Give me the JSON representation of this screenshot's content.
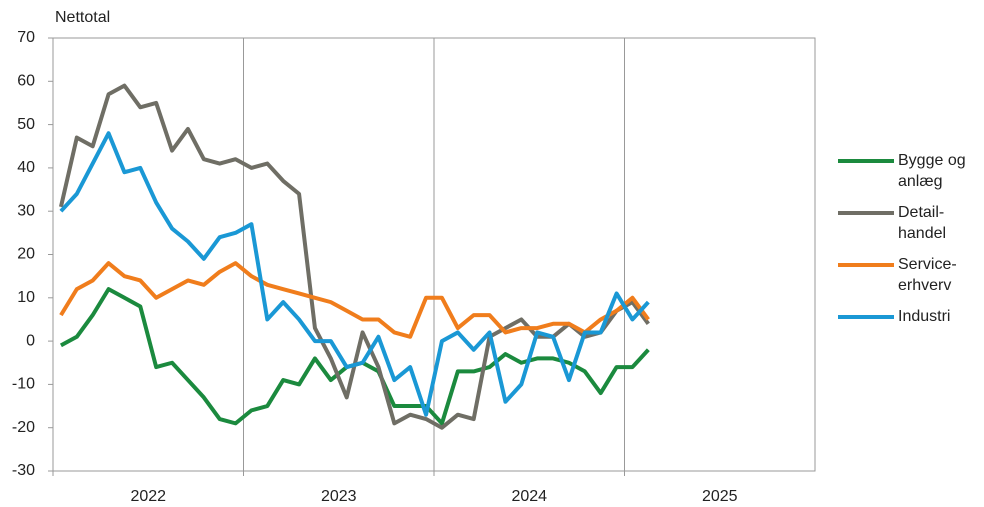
{
  "chart_data": {
    "type": "line",
    "y_axis_title": "Nettotal",
    "year_labels": [
      "2022",
      "2023",
      "2024",
      "2025"
    ],
    "categories": [
      null,
      null,
      null,
      null,
      null,
      null,
      null,
      null,
      null,
      null,
      null,
      null,
      null,
      null,
      null,
      null,
      null,
      null,
      null,
      null,
      null,
      null,
      null,
      null,
      null,
      null,
      null,
      null,
      null,
      null,
      null,
      null,
      null,
      null,
      null,
      null,
      null,
      null,
      null,
      null,
      null,
      null,
      null,
      null,
      null,
      null,
      null,
      null
    ],
    "series": [
      {
        "name": "Bygge og anlæg",
        "color": "#1b8a3e",
        "values": [
          -1,
          1,
          6,
          12,
          10,
          8,
          -6,
          -5,
          -9,
          -13,
          -18,
          -19,
          -16,
          -15,
          -9,
          -10,
          -4,
          -9,
          -6,
          -5,
          -7,
          -15,
          -15,
          -15,
          -19,
          -7,
          -7,
          -6,
          -3,
          -5,
          -4,
          -4,
          -5,
          -7,
          -12,
          -6,
          -6,
          -2,
          null,
          null,
          null,
          null,
          null,
          null,
          null,
          null,
          null,
          null
        ]
      },
      {
        "name": "Detail-handel",
        "color": "#6f6e65",
        "values": [
          31,
          47,
          45,
          57,
          59,
          54,
          55,
          44,
          49,
          42,
          41,
          42,
          40,
          41,
          37,
          34,
          3,
          -4,
          -13,
          2,
          -6,
          -19,
          -17,
          -18,
          -20,
          -17,
          -18,
          1,
          3,
          5,
          1,
          1,
          4,
          1,
          2,
          7,
          9,
          4,
          null,
          null,
          null,
          null,
          null,
          null,
          null,
          null,
          null,
          null
        ]
      },
      {
        "name": "Service-erhverv",
        "color": "#f07d1c",
        "values": [
          6,
          12,
          14,
          18,
          15,
          14,
          10,
          12,
          14,
          13,
          16,
          18,
          15,
          13,
          12,
          11,
          10,
          9,
          7,
          5,
          5,
          2,
          1,
          10,
          10,
          3,
          6,
          6,
          2,
          3,
          3,
          4,
          4,
          2,
          5,
          7,
          10,
          5,
          null,
          null,
          null,
          null,
          null,
          null,
          null,
          null,
          null,
          null
        ]
      },
      {
        "name": "Industri",
        "color": "#1a98d5",
        "values": [
          30,
          34,
          41,
          48,
          39,
          40,
          32,
          26,
          23,
          19,
          24,
          25,
          27,
          5,
          9,
          5,
          0,
          0,
          -6,
          -5,
          1,
          -9,
          -6,
          -17,
          0,
          2,
          -2,
          2,
          -14,
          -10,
          2,
          1,
          -9,
          2,
          2,
          11,
          5,
          9,
          null,
          null,
          null,
          null,
          null,
          null,
          null,
          null,
          null,
          null
        ]
      }
    ],
    "ylim": [
      -30,
      70
    ],
    "yticks": [
      -30,
      -20,
      -10,
      0,
      10,
      20,
      30,
      40,
      50,
      60,
      70
    ],
    "legend": "right"
  }
}
